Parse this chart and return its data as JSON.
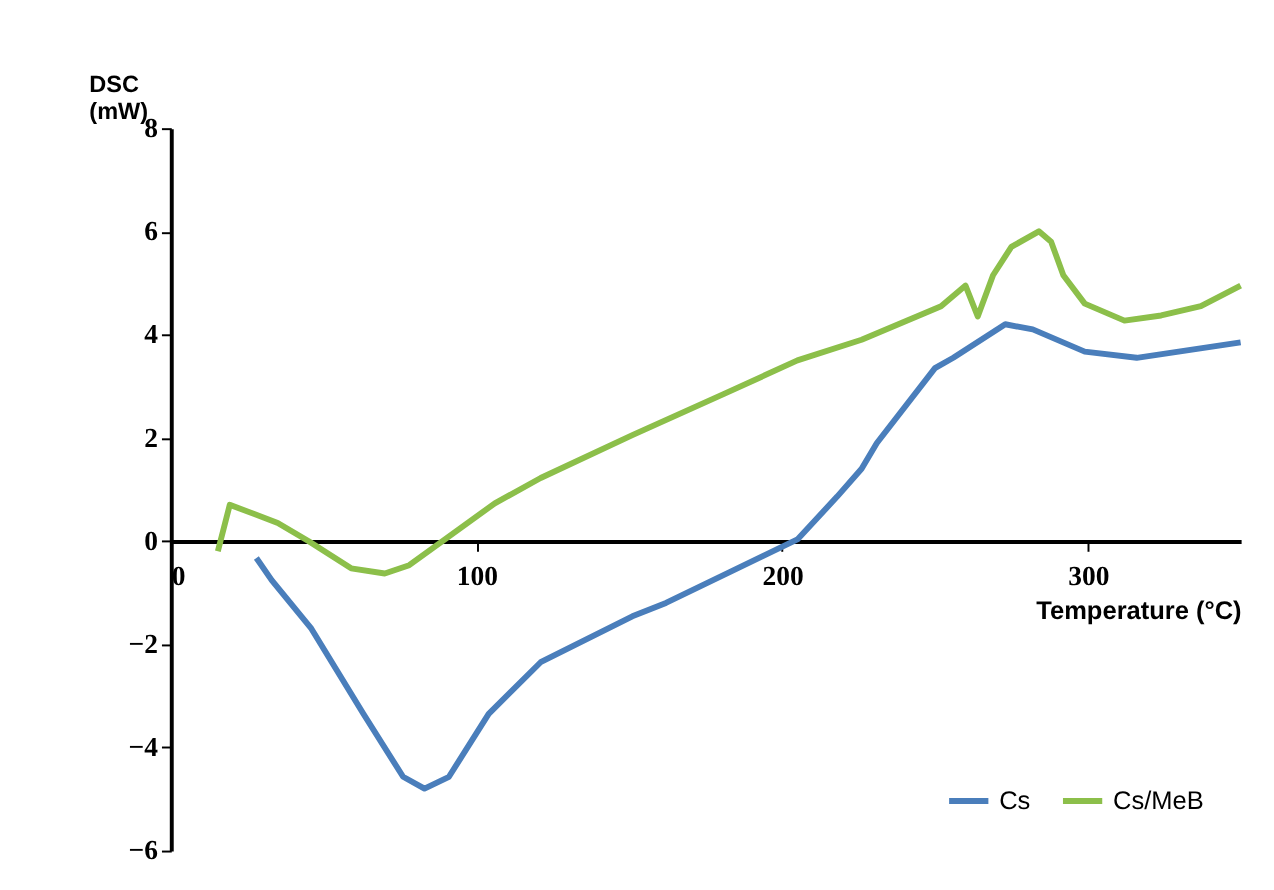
{
  "chart_data": {
    "type": "line",
    "xlabel": "Temperature (°C)",
    "ylabel": "DSC (mW)",
    "xlim": [
      0,
      350
    ],
    "xticks": [
      0,
      100,
      200,
      300
    ],
    "ylim": [
      -6,
      8
    ],
    "yticks": [
      -6,
      -4,
      -2,
      0,
      2,
      4,
      6,
      8
    ],
    "grid": false,
    "legend": "bottom right",
    "marker": "none",
    "line_style": "solid",
    "series": [
      {
        "name": "Cs",
        "color": "#4a7ebb",
        "x": [
          28,
          33,
          46,
          63,
          76,
          83,
          91,
          104,
          121,
          151,
          162,
          183,
          205,
          218,
          226,
          231,
          250,
          256,
          273,
          282,
          299,
          316,
          350
        ],
        "values": [
          -0.33,
          -0.76,
          -1.7,
          -3.35,
          -4.57,
          -4.8,
          -4.57,
          -3.35,
          -2.35,
          -1.46,
          -1.2,
          -0.6,
          0.03,
          0.86,
          1.4,
          1.9,
          3.35,
          3.55,
          4.2,
          4.1,
          3.67,
          3.55,
          3.85
        ]
      },
      {
        "name": "Cs/MeB",
        "color": "#8cbf4a",
        "x": [
          15.4,
          19.3,
          35,
          45,
          59,
          70,
          78,
          89,
          106,
          121,
          151,
          181,
          205,
          226,
          252,
          260,
          264,
          269,
          275,
          284,
          288,
          292,
          299,
          312,
          324,
          337,
          350
        ],
        "values": [
          -0.2,
          0.7,
          0.35,
          0,
          -0.53,
          -0.63,
          -0.47,
          0,
          0.73,
          1.22,
          2.05,
          2.85,
          3.5,
          3.9,
          4.55,
          4.95,
          4.35,
          5.15,
          5.7,
          6.0,
          5.8,
          5.15,
          4.6,
          4.27,
          4.37,
          4.55,
          4.95
        ]
      }
    ]
  }
}
